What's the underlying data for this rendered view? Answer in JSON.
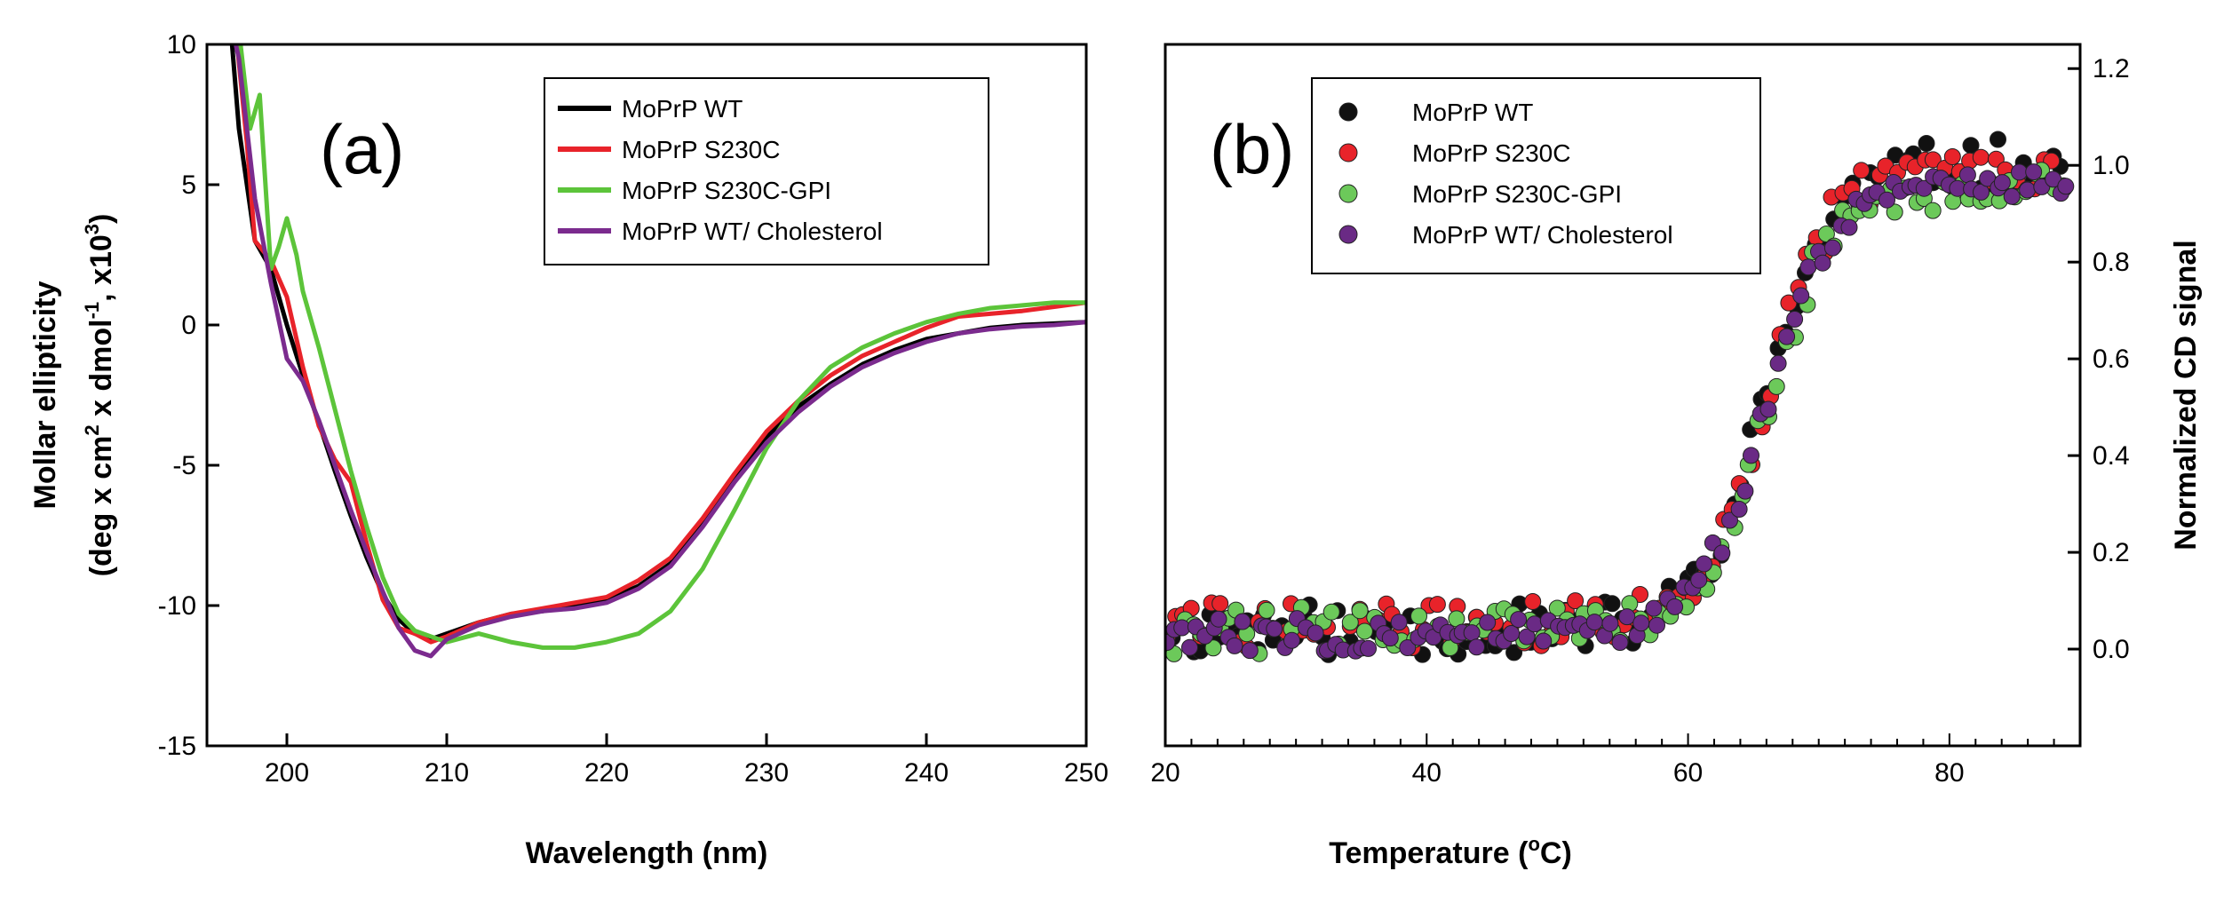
{
  "chart_data": [
    {
      "type": "line",
      "panel_label": "(a)",
      "xlabel": "Wavelength (nm)",
      "ylabel_line1": "Mollar ellipticity",
      "ylabel_line2": "(deg x cm",
      "ylabel_sup1": "2",
      "ylabel_mid": "x dmol",
      "ylabel_sup2": "-1",
      "ylabel_end": ", x10",
      "ylabel_sup3": "3",
      "ylabel_close": ")",
      "xlim": [
        195,
        250
      ],
      "ylim": [
        -15,
        10
      ],
      "xticks": [
        200,
        210,
        220,
        230,
        240,
        250
      ],
      "yticks": [
        -15,
        -10,
        -5,
        0,
        5,
        10
      ],
      "grid": false,
      "legend_position": "top-right",
      "series": [
        {
          "name": "MoPrP WT",
          "color": "#000000",
          "x": [
            196.5,
            197,
            198,
            199,
            200,
            201,
            202,
            203,
            204,
            205,
            206,
            207,
            208,
            209,
            210,
            212,
            214,
            216,
            218,
            220,
            222,
            224,
            226,
            228,
            230,
            232,
            234,
            236,
            238,
            240,
            242,
            244,
            246,
            248,
            250
          ],
          "y": [
            10.5,
            7,
            3,
            2,
            0,
            -1.8,
            -3.5,
            -5.2,
            -6.8,
            -8.3,
            -9.6,
            -10.5,
            -11.0,
            -11.2,
            -11.0,
            -10.6,
            -10.3,
            -10.2,
            -10.0,
            -9.8,
            -9.3,
            -8.5,
            -7.0,
            -5.5,
            -4.0,
            -2.9,
            -2.1,
            -1.4,
            -0.9,
            -0.5,
            -0.3,
            -0.1,
            0.0,
            0.05,
            0.1
          ]
        },
        {
          "name": "MoPrP S230C",
          "color": "#e8232a",
          "x": [
            196.8,
            197.5,
            198,
            199,
            200,
            201,
            202,
            203,
            204,
            205,
            206,
            207,
            208,
            209,
            210,
            212,
            214,
            216,
            218,
            220,
            222,
            224,
            226,
            228,
            230,
            232,
            234,
            236,
            238,
            240,
            242,
            244,
            246,
            248,
            250
          ],
          "y": [
            10.5,
            6.5,
            3,
            2.3,
            1.0,
            -1.5,
            -3.6,
            -4.8,
            -5.6,
            -7.8,
            -9.8,
            -10.8,
            -11.0,
            -11.3,
            -11.1,
            -10.6,
            -10.3,
            -10.1,
            -9.9,
            -9.7,
            -9.1,
            -8.3,
            -6.9,
            -5.3,
            -3.8,
            -2.7,
            -1.8,
            -1.1,
            -0.6,
            -0.1,
            0.3,
            0.4,
            0.5,
            0.65,
            0.8
          ]
        },
        {
          "name": "MoPrP S230C-GPI",
          "color": "#5cc43a",
          "x": [
            197,
            197.7,
            198.3,
            199,
            199.5,
            200,
            200.6,
            201,
            202,
            203,
            204,
            205,
            206,
            207,
            208,
            209,
            210,
            212,
            214,
            216,
            218,
            220,
            222,
            224,
            226,
            228,
            230,
            232,
            234,
            236,
            238,
            240,
            242,
            244,
            246,
            248,
            250
          ],
          "y": [
            10.5,
            7.0,
            8.2,
            2.0,
            2.8,
            3.8,
            2.5,
            1.2,
            -0.8,
            -3.0,
            -5.2,
            -7.2,
            -9.0,
            -10.3,
            -10.9,
            -11.1,
            -11.3,
            -11.0,
            -11.3,
            -11.5,
            -11.5,
            -11.3,
            -11.0,
            -10.2,
            -8.7,
            -6.6,
            -4.4,
            -2.7,
            -1.5,
            -0.8,
            -0.3,
            0.1,
            0.4,
            0.6,
            0.7,
            0.8,
            0.8
          ]
        },
        {
          "name": "MoPrP WT/ Cholesterol",
          "color": "#7b2b8e",
          "x": [
            196.6,
            197,
            198,
            199,
            200,
            201,
            202,
            203,
            204,
            205,
            206,
            207,
            208,
            209,
            210,
            212,
            214,
            216,
            218,
            220,
            222,
            224,
            226,
            228,
            230,
            232,
            234,
            236,
            238,
            240,
            242,
            244,
            246,
            248,
            250
          ],
          "y": [
            10.5,
            9.5,
            4.5,
            1.5,
            -1.2,
            -2.0,
            -3.4,
            -5.0,
            -6.6,
            -8.1,
            -9.5,
            -10.8,
            -11.6,
            -11.8,
            -11.2,
            -10.7,
            -10.4,
            -10.2,
            -10.1,
            -9.9,
            -9.4,
            -8.6,
            -7.2,
            -5.6,
            -4.2,
            -3.1,
            -2.2,
            -1.5,
            -1.0,
            -0.6,
            -0.3,
            -0.15,
            -0.05,
            0.0,
            0.1
          ]
        }
      ]
    },
    {
      "type": "scatter",
      "panel_label": "(b)",
      "xlabel_pre": "Temperature (",
      "xlabel_sup": "o",
      "xlabel_post": "C)",
      "ylabel": "Normalized CD signal",
      "xlim": [
        20,
        90
      ],
      "ylim": [
        -0.2,
        1.25
      ],
      "xticks": [
        20,
        40,
        60,
        80
      ],
      "xticks_minor_step": 2,
      "yticks": [
        0.0,
        0.2,
        0.4,
        0.6,
        0.8,
        1.0,
        1.2
      ],
      "ytick_labels": [
        "0.0",
        "0.2",
        "0.4",
        "0.6",
        "0.8",
        "1.0",
        "1.2"
      ],
      "y_axis_side": "right",
      "grid": false,
      "legend_position": "top-left",
      "transition": {
        "midpoint": 66,
        "width": 2.5
      },
      "series": [
        {
          "name": "MoPrP WT",
          "color": "#111111",
          "start": 20,
          "end": 89,
          "step": 0.7,
          "baseline": 0.04,
          "plateau": 1.0,
          "jitter": 0.055,
          "seed": 11
        },
        {
          "name": "MoPrP S230C",
          "color": "#e8232a",
          "start": 20,
          "end": 89,
          "step": 0.7,
          "baseline": 0.05,
          "plateau": 1.0,
          "jitter": 0.05,
          "seed": 29
        },
        {
          "name": "MoPrP S230C-GPI",
          "color": "#6cc95a",
          "start": 20,
          "end": 89,
          "step": 0.7,
          "baseline": 0.04,
          "plateau": 0.95,
          "jitter": 0.05,
          "seed": 47
        },
        {
          "name": "MoPrP WT/ Cholesterol",
          "color": "#6a2a85",
          "start": 20,
          "end": 89,
          "step": 0.6,
          "baseline": 0.03,
          "plateau": 0.97,
          "jitter": 0.035,
          "seed": 83
        }
      ]
    }
  ]
}
